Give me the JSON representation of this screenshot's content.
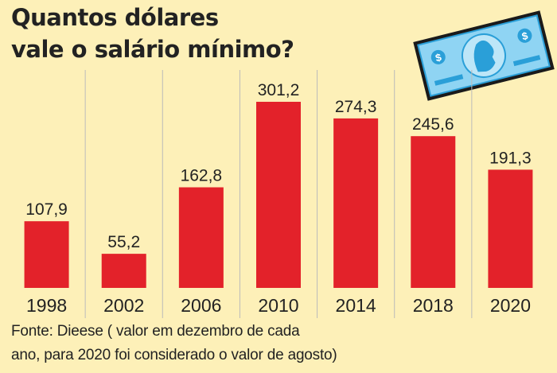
{
  "title_lines": [
    "Quantos dólares",
    "vale o salário mínimo?"
  ],
  "source_lines": [
    "Fonte: Dieese ( valor em dezembro de cada",
    "ano, para 2020 foi considerado o valor de agosto)"
  ],
  "colors": {
    "bar": "#e3222a",
    "background": "#fdf0b8",
    "gridline": "#bbbbbb",
    "text": "#222222",
    "bill": "#2a9fd8"
  },
  "chart_data": {
    "type": "bar",
    "categories": [
      "1998",
      "2002",
      "2006",
      "2010",
      "2014",
      "2018",
      "2020"
    ],
    "values": [
      107.9,
      55.2,
      162.8,
      301.2,
      274.3,
      245.6,
      191.3
    ],
    "value_labels": [
      "107,9",
      "55,2",
      "162,8",
      "301,2",
      "274,3",
      "245,6",
      "191,3"
    ],
    "title": "Quantos dólares vale o salário mínimo?",
    "ylim": [
      0,
      301.2
    ],
    "grid": "vertical separators"
  },
  "decoration": {
    "icon": "dollar-bill-icon",
    "symbol": "$"
  }
}
